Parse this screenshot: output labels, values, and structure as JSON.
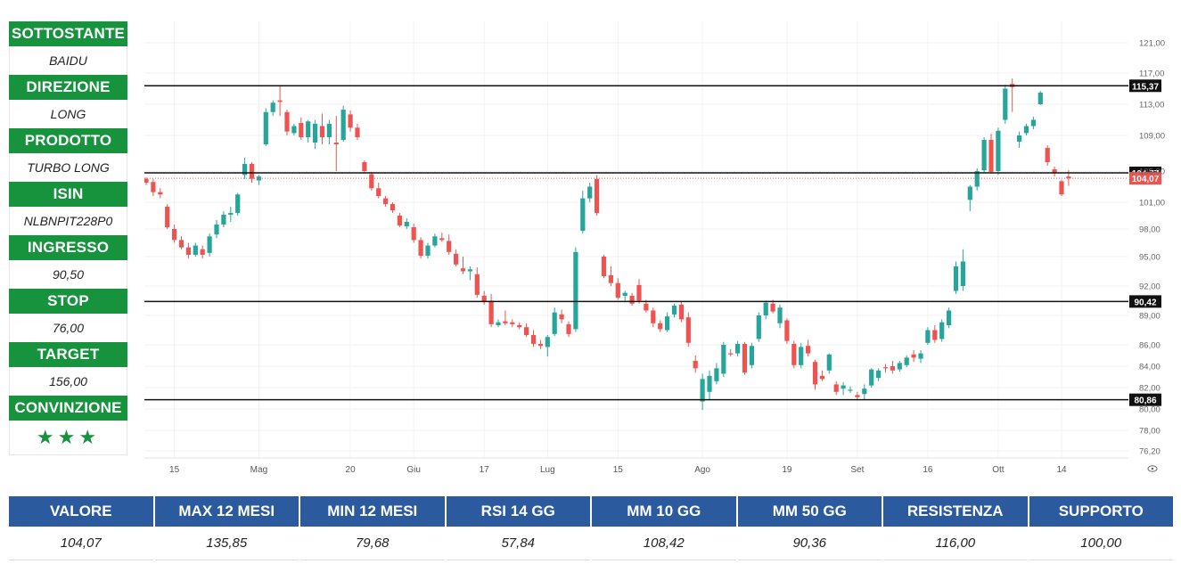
{
  "sidebar": {
    "items": [
      {
        "label": "SOTTOSTANTE",
        "value": "BAIDU"
      },
      {
        "label": "DIREZIONE",
        "value": "LONG"
      },
      {
        "label": "PRODOTTO",
        "value": "TURBO LONG"
      },
      {
        "label": "ISIN",
        "value": "NLBNPIT228P0"
      },
      {
        "label": "INGRESSO",
        "value": "90,50"
      },
      {
        "label": "STOP",
        "value": "76,00"
      },
      {
        "label": "TARGET",
        "value": "156,00"
      },
      {
        "label": "CONVINZIONE",
        "value": "★★★"
      }
    ]
  },
  "stats": [
    {
      "label": "VALORE",
      "value": "104,07"
    },
    {
      "label": "MAX 12 MESI",
      "value": "135,85"
    },
    {
      "label": "MIN 12 MESI",
      "value": "79,68"
    },
    {
      "label": "RSI 14 GG",
      "value": "57,84"
    },
    {
      "label": "MM 10 GG",
      "value": "108,42"
    },
    {
      "label": "MM 50 GG",
      "value": "90,36"
    },
    {
      "label": "RESISTENZA",
      "value": "116,00"
    },
    {
      "label": "SUPPORTO",
      "value": "100,00"
    }
  ],
  "colors": {
    "up": "#26a69a",
    "down": "#ef5350",
    "accent_green": "#17933e",
    "header_blue": "#2b5a9f"
  },
  "chart_data": {
    "type": "candlestick",
    "y_ticks": [
      "76,20",
      "78,00",
      "80,00",
      "82,00",
      "84,00",
      "86,00",
      "89,00",
      "92,00",
      "95,00",
      "98,00",
      "101,00",
      "105,00",
      "109,00",
      "113,00",
      "117,00",
      "121,00"
    ],
    "x_ticks": [
      {
        "index": 4,
        "label": "15"
      },
      {
        "index": 16,
        "label": "Mag"
      },
      {
        "index": 29,
        "label": "20"
      },
      {
        "index": 38,
        "label": "Giu"
      },
      {
        "index": 48,
        "label": "17"
      },
      {
        "index": 57,
        "label": "Lug"
      },
      {
        "index": 67,
        "label": "15"
      },
      {
        "index": 79,
        "label": "Ago"
      },
      {
        "index": 91,
        "label": "19"
      },
      {
        "index": 101,
        "label": "Set"
      },
      {
        "index": 111,
        "label": "16"
      },
      {
        "index": 121,
        "label": "Ott"
      },
      {
        "index": 130,
        "label": "14"
      }
    ],
    "hlines": [
      {
        "value": 115.37,
        "label": "115,37",
        "badge": "#111111"
      },
      {
        "value": 104.77,
        "label": "104,77",
        "badge": "#111111"
      },
      {
        "value": 90.42,
        "label": "90,42",
        "badge": "#111111"
      },
      {
        "value": 80.86,
        "label": "80,86",
        "badge": "#111111"
      }
    ],
    "last_price": {
      "value": 104.07,
      "label": "104,07",
      "badge": "#ef5350"
    },
    "candles": [
      [
        104,
        104.2,
        103.2,
        103.5
      ],
      [
        103.6,
        104,
        101.8,
        102.3
      ],
      [
        102.3,
        102.8,
        101.5,
        102
      ],
      [
        100.5,
        100.8,
        98,
        98.2
      ],
      [
        98,
        98.5,
        96.5,
        96.8
      ],
      [
        96.8,
        97.2,
        95.8,
        96
      ],
      [
        96,
        96.5,
        94.8,
        95.2
      ],
      [
        95.2,
        96.5,
        95,
        96.2
      ],
      [
        95.8,
        96.2,
        94.8,
        95.2
      ],
      [
        95.4,
        97.5,
        95,
        97.2
      ],
      [
        97.4,
        99,
        97,
        98.5
      ],
      [
        98.5,
        100,
        98.2,
        99.6
      ],
      [
        99.6,
        100.5,
        98.8,
        99.8
      ],
      [
        99.8,
        102.2,
        99.5,
        102
      ],
      [
        104.5,
        106.5,
        104,
        105.8
      ],
      [
        105.8,
        106,
        103.5,
        104
      ],
      [
        103.8,
        104.5,
        103.2,
        104.3
      ],
      [
        108,
        112.5,
        107.8,
        112
      ],
      [
        112,
        113.5,
        111.5,
        113.2
      ],
      [
        113.5,
        115.3,
        111.5,
        113.3
      ],
      [
        112,
        112.3,
        109,
        109.5
      ],
      [
        109.3,
        110.5,
        109,
        110.2
      ],
      [
        110.6,
        111.3,
        108.5,
        108.8
      ],
      [
        108.8,
        111,
        108.2,
        110.8
      ],
      [
        108.2,
        111,
        107.5,
        110.5
      ],
      [
        110.2,
        111.8,
        108,
        108.8
      ],
      [
        108.8,
        111,
        108,
        110.5
      ],
      [
        108.2,
        111.5,
        105,
        108
      ],
      [
        108.5,
        112.8,
        108.3,
        112.3
      ],
      [
        111.7,
        112.2,
        109.5,
        110
      ],
      [
        110,
        110.5,
        108.5,
        108.8
      ],
      [
        106,
        106.2,
        104.8,
        105
      ],
      [
        104.6,
        104.9,
        102.5,
        102.8
      ],
      [
        102.8,
        103.5,
        101.5,
        101.8
      ],
      [
        101.5,
        101.8,
        100.5,
        100.8
      ],
      [
        100.8,
        101,
        99.8,
        100.1
      ],
      [
        99.5,
        99.8,
        98.2,
        98.4
      ],
      [
        98.3,
        99.2,
        98,
        98.8
      ],
      [
        98.2,
        98.6,
        96.5,
        96.8
      ],
      [
        96.8,
        97.1,
        94.8,
        95.1
      ],
      [
        95.1,
        96.5,
        94.8,
        96.2
      ],
      [
        96.2,
        97.5,
        96,
        97.2
      ],
      [
        97,
        97.6,
        96.6,
        96.8
      ],
      [
        96.7,
        97.4,
        95.2,
        95.5
      ],
      [
        95.3,
        95.8,
        94,
        94.2
      ],
      [
        93.8,
        95,
        93.2,
        93.5
      ],
      [
        93.5,
        94,
        92.6,
        93.7
      ],
      [
        93.2,
        93.9,
        90.8,
        91.1
      ],
      [
        91,
        91.5,
        90.1,
        90.4
      ],
      [
        90.5,
        91.2,
        87.8,
        88.1
      ],
      [
        88,
        88.6,
        87.8,
        88.3
      ],
      [
        88.4,
        89.5,
        88,
        88.2
      ],
      [
        88.3,
        88.6,
        87.8,
        88.1
      ],
      [
        88,
        88.3,
        87.6,
        87.8
      ],
      [
        87.8,
        88.2,
        86.8,
        87
      ],
      [
        87,
        87.5,
        85.8,
        86.1
      ],
      [
        86.1,
        86.5,
        85.6,
        85.9
      ],
      [
        85.8,
        87,
        84.9,
        86.8
      ],
      [
        87.1,
        89.8,
        86.9,
        89.3
      ],
      [
        89.1,
        89.6,
        88.2,
        88.6
      ],
      [
        88.1,
        88.4,
        86.8,
        87.1
      ],
      [
        87.6,
        96,
        87.3,
        95.5
      ],
      [
        97.8,
        102.5,
        97.5,
        101.5
      ],
      [
        101.5,
        103.5,
        101,
        103
      ],
      [
        104,
        104.5,
        99.5,
        99.8
      ],
      [
        95,
        95.2,
        92.8,
        93
      ],
      [
        93.1,
        94,
        92,
        92.3
      ],
      [
        92.3,
        92.8,
        90.6,
        90.8
      ],
      [
        91,
        91.5,
        90.5,
        91.3
      ],
      [
        91,
        91.3,
        90,
        90.2
      ],
      [
        92.1,
        92.7,
        90.2,
        90.5
      ],
      [
        90.2,
        90.6,
        89.3,
        89.5
      ],
      [
        89.5,
        89.8,
        87.8,
        88.2
      ],
      [
        88.2,
        88.5,
        87.3,
        87.6
      ],
      [
        87.5,
        89.3,
        87.3,
        88.9
      ],
      [
        89.1,
        90.2,
        88.8,
        90
      ],
      [
        90.1,
        90.4,
        88.3,
        88.6
      ],
      [
        88.8,
        89.3,
        85.8,
        86.2
      ],
      [
        84.5,
        85,
        83.4,
        83.8
      ],
      [
        80.7,
        83.3,
        79.9,
        82.8
      ],
      [
        81.6,
        83.6,
        80.8,
        83.1
      ],
      [
        82.6,
        84.3,
        82.3,
        83.8
      ],
      [
        83.3,
        86.3,
        83,
        86
      ],
      [
        85.2,
        85.6,
        84.9,
        85.1
      ],
      [
        85.2,
        86.4,
        84.9,
        86.1
      ],
      [
        86.1,
        86.3,
        83.2,
        83.4
      ],
      [
        84.1,
        86.2,
        83.8,
        85.9
      ],
      [
        86.6,
        89.3,
        86.3,
        89
      ],
      [
        89,
        90.5,
        88.6,
        90.3
      ],
      [
        90.2,
        90.6,
        89.2,
        89.4
      ],
      [
        88.2,
        90.1,
        87.7,
        89.8
      ],
      [
        88.5,
        88.7,
        86.1,
        86.4
      ],
      [
        86.1,
        86.4,
        83.8,
        84.1
      ],
      [
        84.1,
        86.2,
        83.8,
        85.8
      ],
      [
        85.9,
        86.5,
        84.9,
        85.2
      ],
      [
        84.4,
        84.6,
        81.8,
        82.3
      ],
      [
        83.1,
        83.6,
        82.6,
        82.8
      ],
      [
        83.6,
        85.2,
        83.3,
        85.1
      ],
      [
        82.3,
        82.6,
        81.3,
        81.6
      ],
      [
        81.9,
        82.5,
        81.3,
        82.2
      ],
      [
        81.7,
        82.1,
        81.5,
        81.8
      ],
      [
        81.3,
        81.6,
        80.8,
        81.1
      ],
      [
        81.4,
        82.3,
        80.9,
        81.9
      ],
      [
        82.2,
        83.8,
        82,
        83.7
      ],
      [
        82.9,
        83.8,
        82.6,
        83.6
      ],
      [
        83.9,
        84.2,
        83.4,
        83.8
      ],
      [
        84,
        84.5,
        83.3,
        83.6
      ],
      [
        83.7,
        84.5,
        83.5,
        84.3
      ],
      [
        84.1,
        85,
        83.9,
        84.8
      ],
      [
        85.1,
        85.5,
        84.4,
        84.8
      ],
      [
        84.7,
        85.5,
        84.3,
        85.2
      ],
      [
        86.2,
        87.8,
        86,
        87.5
      ],
      [
        87.5,
        88,
        86.2,
        86.5
      ],
      [
        86.6,
        88.6,
        86.3,
        88.3
      ],
      [
        88,
        89.8,
        87.7,
        89.5
      ],
      [
        91.5,
        94.5,
        91.2,
        94
      ],
      [
        92,
        95.8,
        91.5,
        94.5
      ],
      [
        101.3,
        103.2,
        100,
        103
      ],
      [
        103,
        105.3,
        102.5,
        105
      ],
      [
        105.1,
        108.8,
        104.8,
        108.5
      ],
      [
        108.5,
        109.2,
        104.7,
        104.9
      ],
      [
        105,
        110,
        104.5,
        109.6
      ],
      [
        111,
        115.5,
        110.5,
        115
      ],
      [
        115.6,
        116.3,
        112,
        115.2
      ],
      [
        108.3,
        109.5,
        107.6,
        109
      ],
      [
        109.3,
        110.5,
        109,
        110.2
      ],
      [
        110.2,
        111.4,
        109.8,
        111
      ],
      [
        113,
        114.7,
        112.9,
        114.5
      ],
      [
        107.6,
        107.9,
        105.6,
        106
      ],
      [
        105.2,
        105.5,
        104.3,
        104.8
      ],
      [
        103.7,
        103.9,
        101.8,
        102
      ],
      [
        104.3,
        105.1,
        103.1,
        104.07
      ]
    ]
  }
}
